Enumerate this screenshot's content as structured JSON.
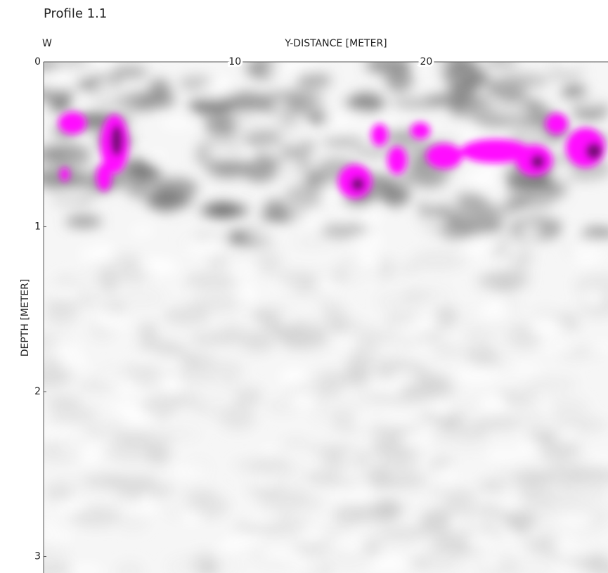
{
  "chart_data": {
    "type": "image",
    "title": "Profile 1.1",
    "side_label": "W",
    "xlabel": "Y-DISTANCE [METER]",
    "ylabel": "DEPTH [METER]",
    "xlim": [
      0,
      29.5
    ],
    "xticks": [
      10,
      20
    ],
    "ylim": [
      0,
      3.1
    ],
    "yticks": [
      0,
      1,
      2,
      3
    ]
  }
}
